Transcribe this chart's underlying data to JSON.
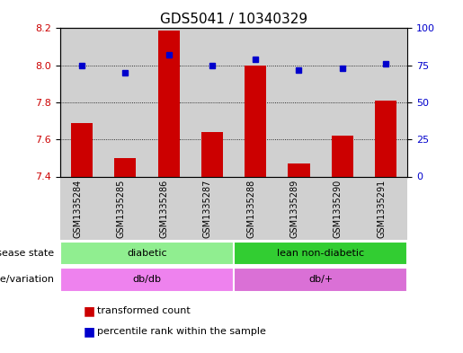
{
  "title": "GDS5041 / 10340329",
  "samples": [
    "GSM1335284",
    "GSM1335285",
    "GSM1335286",
    "GSM1335287",
    "GSM1335288",
    "GSM1335289",
    "GSM1335290",
    "GSM1335291"
  ],
  "transformed_count": [
    7.69,
    7.5,
    8.19,
    7.64,
    8.0,
    7.47,
    7.62,
    7.81
  ],
  "percentile_rank": [
    75,
    70,
    82,
    75,
    79,
    72,
    73,
    76
  ],
  "ymin": 7.4,
  "ymax": 8.2,
  "y2min": 0,
  "y2max": 100,
  "yticks": [
    7.4,
    7.6,
    7.8,
    8.0,
    8.2
  ],
  "y2ticks": [
    0,
    25,
    50,
    75,
    100
  ],
  "disease_state": [
    {
      "label": "diabetic",
      "samples": [
        0,
        1,
        2,
        3
      ],
      "color": "#90ee90"
    },
    {
      "label": "lean non-diabetic",
      "samples": [
        4,
        5,
        6,
        7
      ],
      "color": "#32cd32"
    }
  ],
  "genotype": [
    {
      "label": "db/db",
      "samples": [
        0,
        1,
        2,
        3
      ],
      "color": "#ee82ee"
    },
    {
      "label": "db/+",
      "samples": [
        4,
        5,
        6,
        7
      ],
      "color": "#da70d6"
    }
  ],
  "bar_color": "#cc0000",
  "dot_color": "#0000cc",
  "label_disease_state": "disease state",
  "label_genotype": "genotype/variation",
  "legend_transformed": "transformed count",
  "legend_percentile": "percentile rank within the sample"
}
